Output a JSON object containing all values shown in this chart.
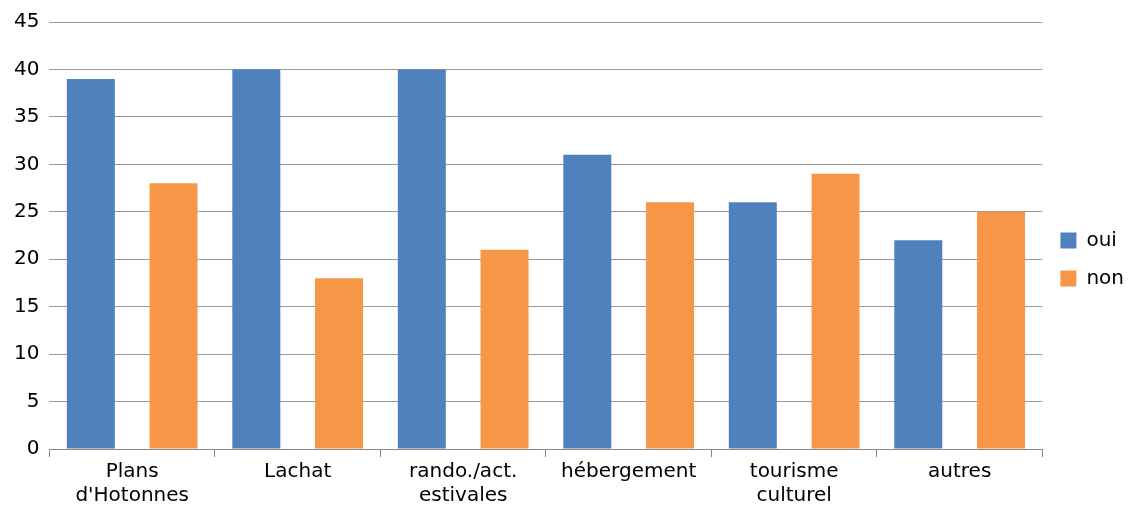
{
  "chart_data": {
    "type": "bar",
    "categories": [
      "Plans d'Hotonnes",
      "Lachat",
      "rando./act. estivales",
      "hébergement",
      "tourisme culturel",
      "autres"
    ],
    "series": [
      {
        "name": "oui",
        "color": "#4f81bd",
        "values": [
          39,
          40,
          40,
          31,
          26,
          22
        ]
      },
      {
        "name": "non",
        "color": "#f79646",
        "values": [
          28,
          18,
          21,
          26,
          29,
          25
        ]
      }
    ],
    "ylim": [
      0,
      45
    ],
    "yticks": [
      0,
      5,
      10,
      15,
      20,
      25,
      30,
      35,
      40,
      45
    ],
    "grid": "y",
    "legend": "right"
  }
}
